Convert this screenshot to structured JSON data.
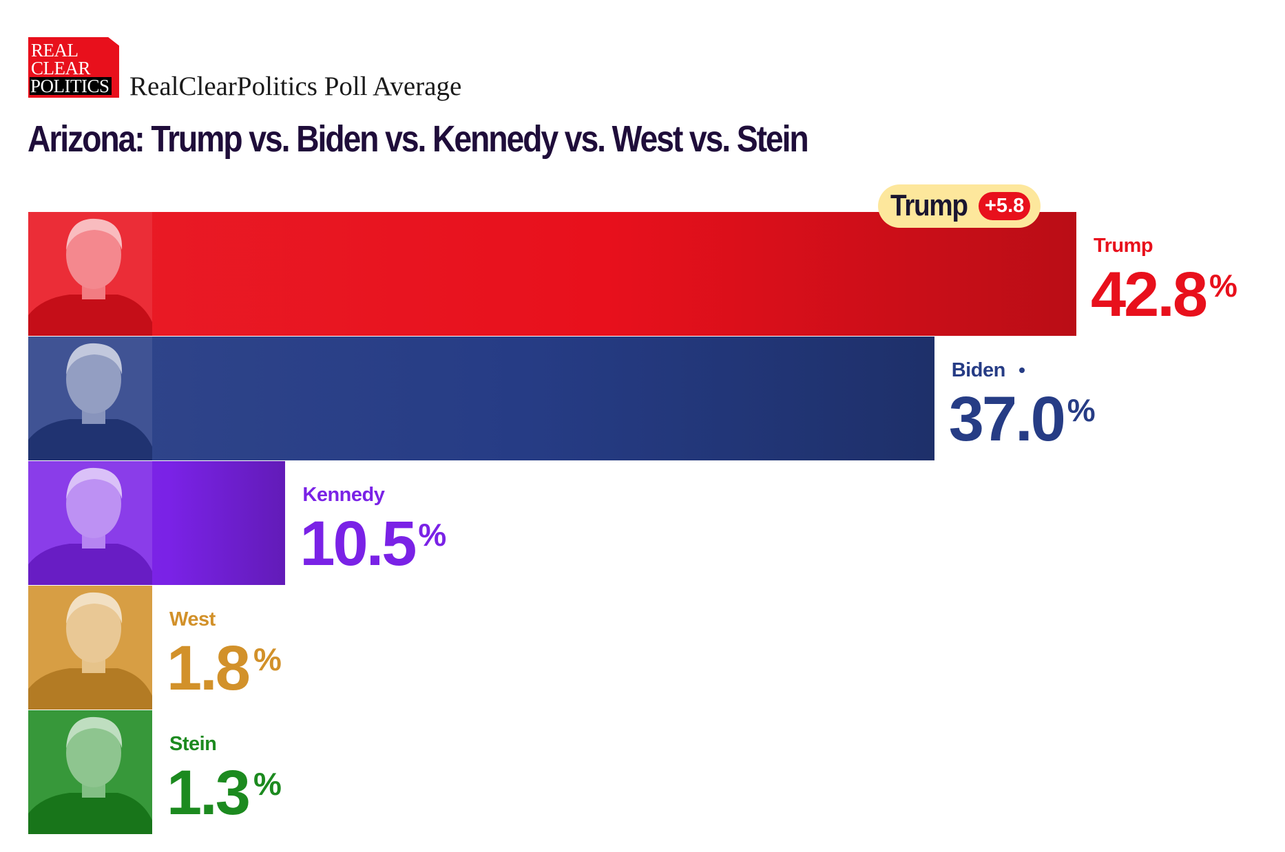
{
  "header": {
    "logo_line1": "REAL",
    "logo_line2": "CLEAR",
    "logo_line3": "POLITICS",
    "source": "RealClearPolitics Poll Average",
    "title": "Arizona: Trump vs. Biden vs. Kennedy vs. West vs. Stein"
  },
  "leader": {
    "name": "Trump",
    "margin": "+5.8"
  },
  "chart_data": {
    "type": "bar",
    "orientation": "horizontal",
    "title": "Arizona: Trump vs. Biden vs. Kennedy vs. West vs. Stein",
    "xlabel": "",
    "ylabel": "",
    "grid": false,
    "legend": "none",
    "categories": [
      "Trump",
      "Biden",
      "Kennedy",
      "West",
      "Stein"
    ],
    "values": [
      42.8,
      37.0,
      10.5,
      1.8,
      1.3
    ],
    "labels": [
      "42.8",
      "37.0",
      "10.5",
      "1.8",
      "1.3"
    ],
    "percent_sign": "%",
    "colors": [
      "#e8101c",
      "#263c85",
      "#7a22e6",
      "#d2912a",
      "#1c8a1f"
    ],
    "marked": [
      "Biden"
    ]
  }
}
